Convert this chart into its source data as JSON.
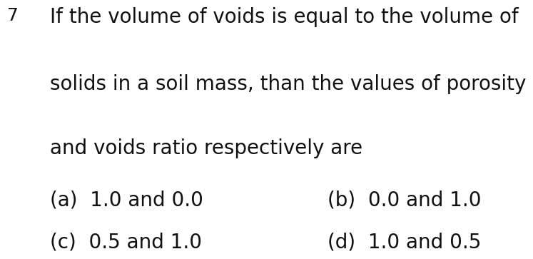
{
  "background_color": "#ffffff",
  "bullet_char": "‣",
  "line1": "If the volume of voids is equal to the volume of",
  "line2": "solids in a soil mass, than the values of porosity",
  "line3": "and voids ratio respectively are",
  "option_a": "(a)  1.0 and 0.0",
  "option_b": "(b)  0.0 and 1.0",
  "option_c": "(c)  0.5 and 1.0",
  "option_d": "(d)  1.0 and 0.5",
  "text_fontsize": 20,
  "bullet_fontsize": 18,
  "text_color": "#111111",
  "font_family": "DejaVu Sans",
  "font_weight": "normal"
}
